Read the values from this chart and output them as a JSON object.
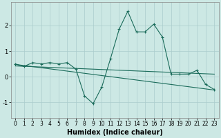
{
  "xlabel": "Humidex (Indice chaleur)",
  "bg_color": "#cce8e4",
  "grid_color": "#aacccc",
  "line_color": "#1a6b5a",
  "xlim": [
    -0.5,
    23.5
  ],
  "ylim": [
    -1.6,
    2.9
  ],
  "line1_x": [
    0,
    1,
    2,
    3,
    4,
    5,
    6,
    7,
    8,
    9,
    10,
    11,
    12,
    13,
    14,
    15,
    16,
    17,
    18,
    19,
    20,
    21,
    22,
    23
  ],
  "line1_y": [
    0.5,
    0.4,
    0.55,
    0.5,
    0.55,
    0.5,
    0.55,
    0.3,
    -0.75,
    -1.05,
    -0.4,
    0.7,
    1.85,
    2.55,
    1.75,
    1.75,
    2.05,
    1.55,
    0.1,
    0.1,
    0.1,
    0.25,
    -0.3,
    -0.5
  ],
  "line2_x": [
    0,
    23
  ],
  "line2_y": [
    0.48,
    -0.52
  ],
  "line3_x": [
    0,
    23
  ],
  "line3_y": [
    0.42,
    0.1
  ],
  "yticks": [
    -1,
    0,
    1,
    2
  ],
  "xticks": [
    0,
    1,
    2,
    3,
    4,
    5,
    6,
    7,
    8,
    9,
    10,
    11,
    12,
    13,
    14,
    15,
    16,
    17,
    18,
    19,
    20,
    21,
    22,
    23
  ],
  "xlabel_fontsize": 7,
  "tick_fontsize": 5.5
}
